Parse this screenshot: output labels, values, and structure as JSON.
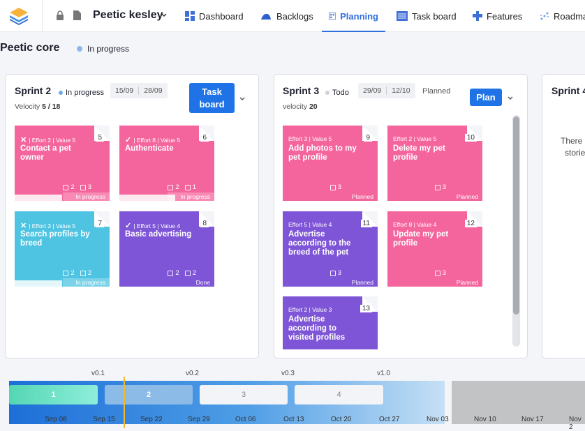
{
  "header": {
    "project_name": "Peetic kesley",
    "nav": [
      {
        "label": "Dashboard",
        "icon": "dashboard-icon"
      },
      {
        "label": "Backlogs",
        "icon": "backlogs-icon"
      },
      {
        "label": "Planning",
        "icon": "planning-icon",
        "active": true
      },
      {
        "label": "Task board",
        "icon": "taskboard-icon"
      },
      {
        "label": "Features",
        "icon": "features-icon"
      },
      {
        "label": "Roadma",
        "icon": "roadmap-icon"
      }
    ]
  },
  "team": {
    "name": "Peetic core",
    "status": "In progress"
  },
  "sprints": [
    {
      "title": "Sprint 2",
      "status": "In progress",
      "status_color": "#6ea8ee",
      "velocity_label": "Velocity",
      "velocity": "5 / 18",
      "start": "15/09",
      "end": "28/09",
      "button": "Task board",
      "cards": [
        {
          "num": "5",
          "meta": "| Effort 2 | Value 5",
          "mark": "x",
          "title": "Contact a pet owner",
          "tasks_a": "2",
          "tasks_b": "3",
          "status": "In progress",
          "color": "pink"
        },
        {
          "num": "6",
          "meta": "| Effort 8 | Value 5",
          "mark": "check",
          "title": "Authenticate",
          "tasks_a": "2",
          "tasks_b": "1",
          "status": "In progress",
          "color": "pink"
        },
        {
          "num": "7",
          "meta": "| Effort 3 | Value 5",
          "mark": "x",
          "title": "Search profiles by breed",
          "tasks_a": "2",
          "tasks_b": "2",
          "status": "In progress",
          "color": "cyan"
        },
        {
          "num": "8",
          "meta": "| Effort 5 | Value 4",
          "mark": "check",
          "title": "Basic advertising",
          "tasks_a": "2",
          "tasks_b": "2",
          "status": "Done",
          "color": "purple"
        }
      ]
    },
    {
      "title": "Sprint 3",
      "status": "Todo",
      "status_color": "#cfd1d6",
      "velocity_label": "velocity",
      "velocity": "20",
      "start": "29/09",
      "end": "12/10",
      "state_label": "Planned",
      "button": "Plan",
      "cards": [
        {
          "num": "9",
          "meta": "Effort 3 | Value 5",
          "title": "Add photos to my pet profile",
          "tasks": "3",
          "status": "Planned",
          "color": "pink"
        },
        {
          "num": "10",
          "meta": "Effort 2 | Value 5",
          "title": "Delete my pet profile",
          "tasks": "3",
          "status": "Planned",
          "color": "pink"
        },
        {
          "num": "11",
          "meta": "Effort 5 | Value 4",
          "title": "Advertise according to the breed of the pet",
          "tasks": "3",
          "status": "Planned",
          "color": "purple"
        },
        {
          "num": "12",
          "meta": "Effort 8 | Value 4",
          "title": "Update my pet profile",
          "tasks": "3",
          "status": "Planned",
          "color": "pink"
        },
        {
          "num": "13",
          "meta": "Effort 2 | Value 3",
          "title": "Advertise according to visited profiles",
          "tasks": "",
          "status": "",
          "color": "purple"
        }
      ]
    },
    {
      "title": "Sprint 4",
      "empty_text_1": "There",
      "empty_text_2": "storie"
    }
  ],
  "timeline": {
    "versions": [
      "v0.1",
      "v0.2",
      "v0.3",
      "v1.0"
    ],
    "sprints": [
      "1",
      "2",
      "3",
      "4"
    ],
    "dates": [
      "Sep 08",
      "Sep 15",
      "Sep 22",
      "Sep 29",
      "Oct 06",
      "Oct 13",
      "Oct 20",
      "Oct 27",
      "Nov 03",
      "Nov 10",
      "Nov 17",
      "Nov 2"
    ]
  },
  "colors": {
    "accent": "#1f73e6",
    "pink": "#f5659d",
    "cyan": "#4fc4e2",
    "purple": "#7e55d6",
    "cursor": "#f3b92b"
  }
}
